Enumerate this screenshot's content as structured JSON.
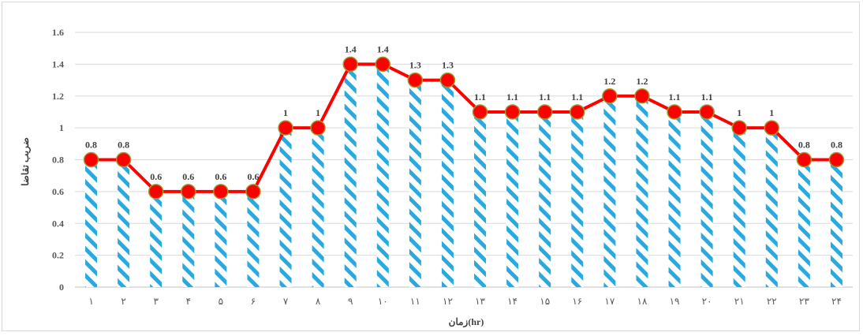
{
  "chart_data": {
    "type": "line",
    "categories": [
      "۱",
      "۲",
      "۳",
      "۴",
      "۵",
      "۶",
      "۷",
      "۸",
      "۹",
      "۱۰",
      "۱۱",
      "۱۲",
      "۱۳",
      "۱۴",
      "۱۵",
      "۱۶",
      "۱۷",
      "۱۸",
      "۱۹",
      "۲۰",
      "۲۱",
      "۲۲",
      "۲۳",
      "۲۴"
    ],
    "values": [
      0.8,
      0.8,
      0.6,
      0.6,
      0.6,
      0.6,
      1,
      1,
      1.4,
      1.4,
      1.3,
      1.3,
      1.1,
      1.1,
      1.1,
      1.1,
      1.2,
      1.2,
      1.1,
      1.1,
      1,
      1,
      0.8,
      0.8
    ],
    "data_labels": [
      "0.8",
      "0.8",
      "0.6",
      "0.6",
      "0.6",
      "0.6",
      "1",
      "1",
      "1.4",
      "1.4",
      "1.3",
      "1.3",
      "1.1",
      "1.1",
      "1.1",
      "1.1",
      "1.2",
      "1.2",
      "1.1",
      "1.1",
      "1",
      "1",
      "0.8",
      "0.8"
    ],
    "title": "",
    "xlabel": "زمان(hr)",
    "ylabel": "ضریب تقاضا",
    "ylim": [
      0,
      1.6
    ],
    "yticks": [
      "0",
      "0.2",
      "0.4",
      "0.6",
      "0.8",
      "1",
      "1.2",
      "1.4",
      "1.6"
    ],
    "grid": true,
    "legend": "none",
    "colors": {
      "line": "#ff0000",
      "marker_fill": "#ff0000",
      "marker_edge": "#9a9a30",
      "hatch_bar": "#29a9e0",
      "grid": "#d9d9d9"
    }
  }
}
